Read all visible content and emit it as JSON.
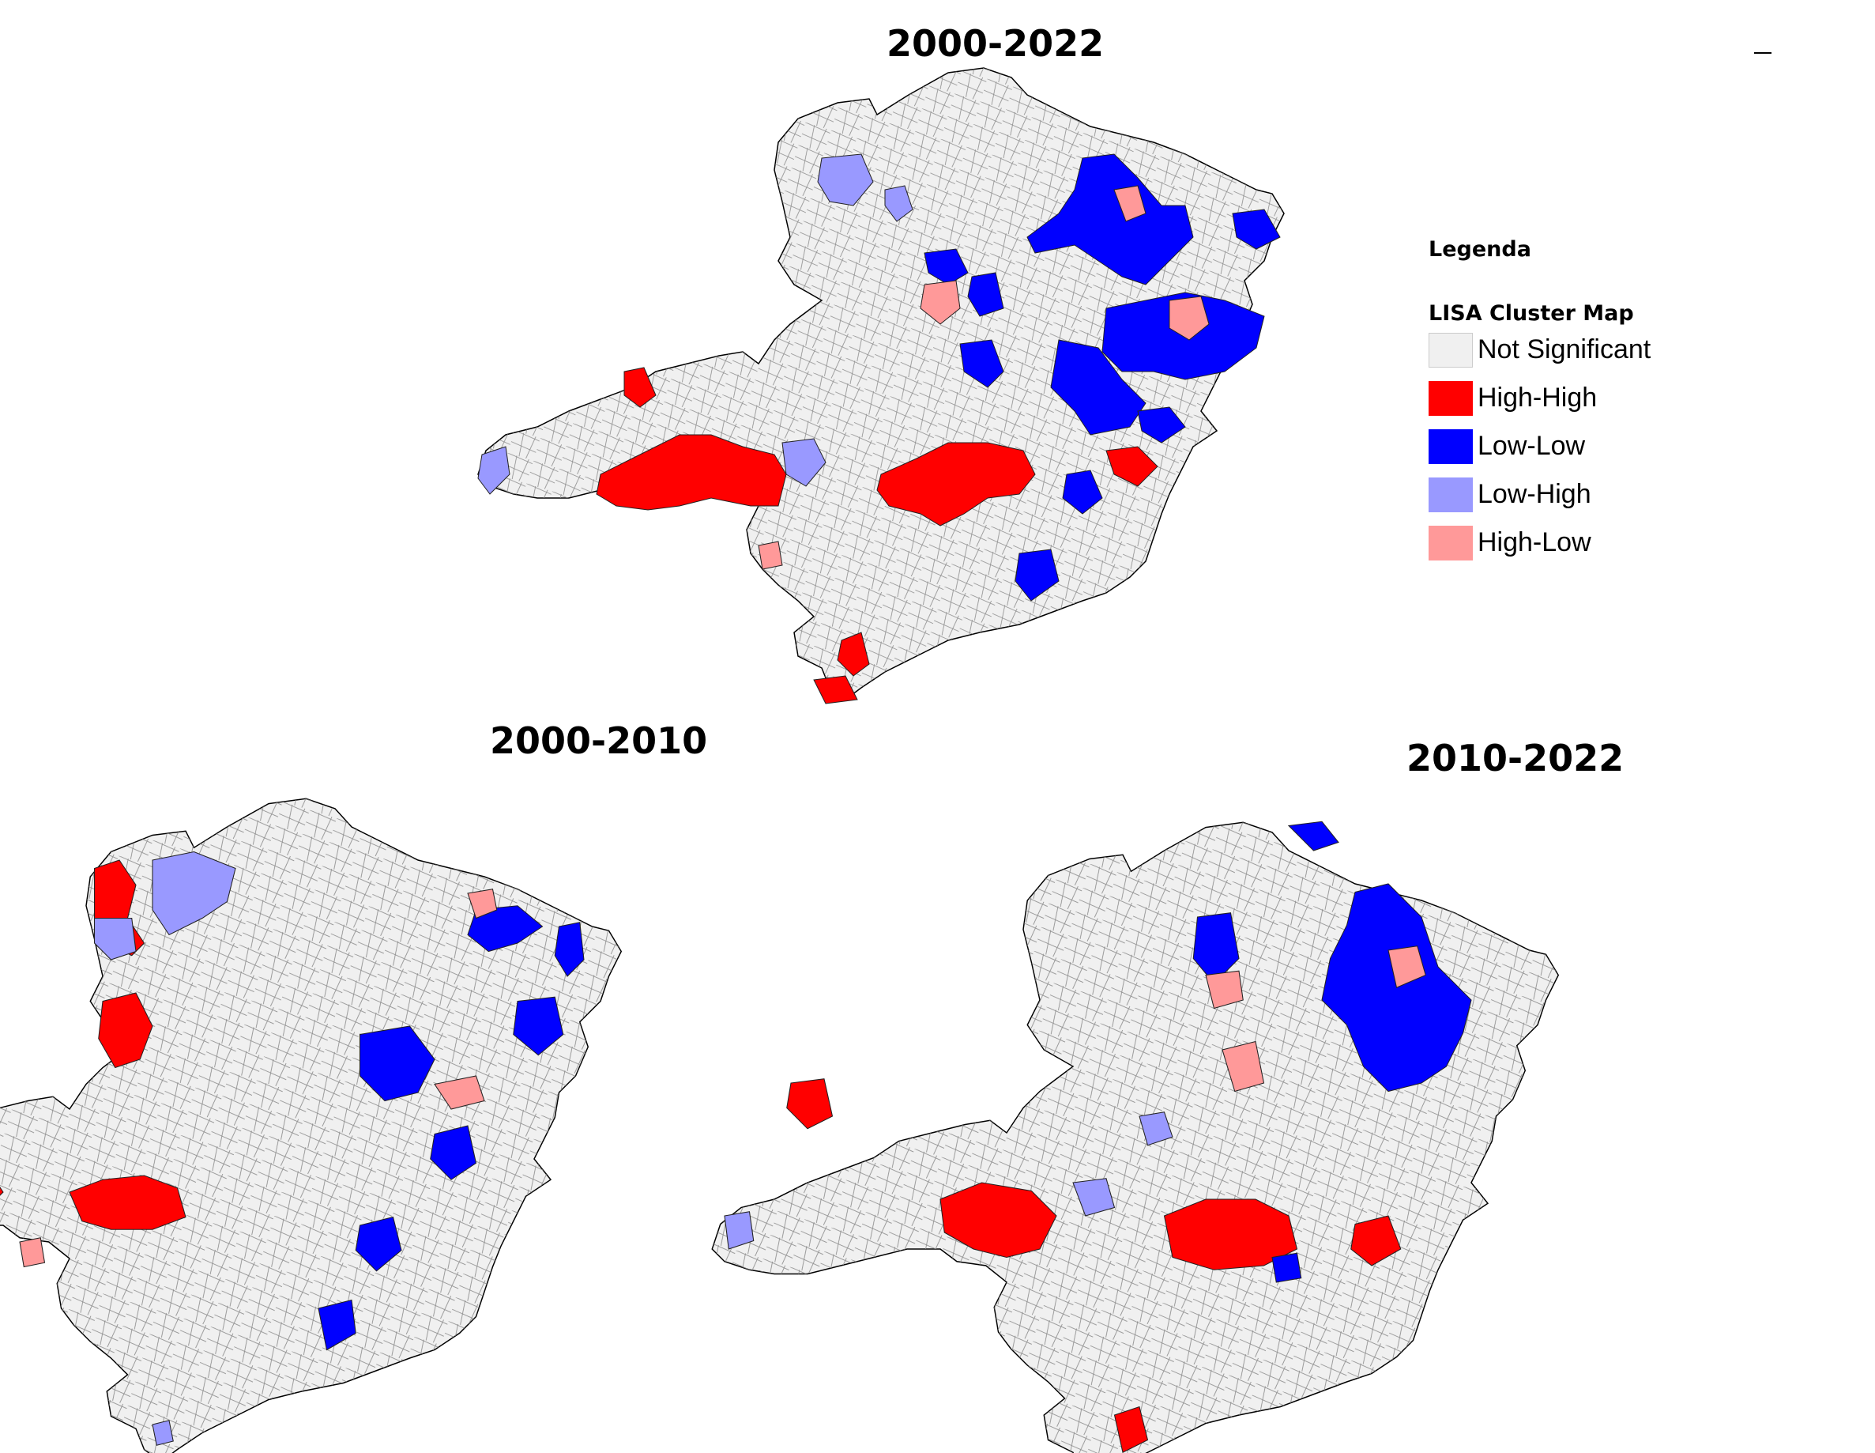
{
  "maps": [
    {
      "id": "map-2000-2022",
      "title": "2000-2022"
    },
    {
      "id": "map-2000-2010",
      "title": "2000-2010"
    },
    {
      "id": "map-2010-2022",
      "title": "2010-2022"
    }
  ],
  "legend": {
    "title": "Legenda",
    "subtitle": "LISA Cluster Map",
    "items": [
      {
        "label": "Not Significant",
        "color": "#f0f0f0"
      },
      {
        "label": "High-High",
        "color": "#ff0000"
      },
      {
        "label": "Low-Low",
        "color": "#0000ff"
      },
      {
        "label": "Low-High",
        "color": "#9999ff"
      },
      {
        "label": "High-Low",
        "color": "#ff9999"
      }
    ]
  }
}
